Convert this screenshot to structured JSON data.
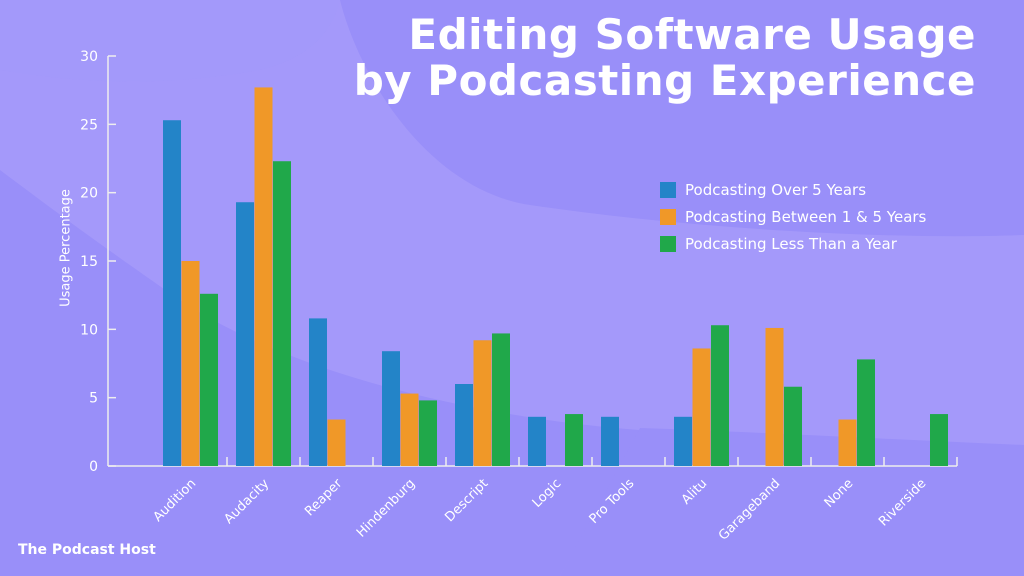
{
  "colors": {
    "background": "#998ff9",
    "background_light": "#a59afa",
    "series": [
      "#2384c8",
      "#f09828",
      "#20a84a"
    ]
  },
  "chart_data": {
    "type": "bar",
    "title": "Editing Software Usage by Podcasting Experience",
    "title_lines": [
      "Editing Software Usage",
      "by Podcasting Experience"
    ],
    "xlabel": "",
    "ylabel": "Usage Percentage",
    "ylim": [
      0,
      30
    ],
    "yticks": [
      0,
      5,
      10,
      15,
      20,
      25,
      30
    ],
    "grid": false,
    "legend_position": "right",
    "categories": [
      "Audition",
      "Audacity",
      "Reaper",
      "Hindenburg",
      "Descript",
      "Logic",
      "Pro Tools",
      "Alitu",
      "Garageband",
      "None",
      "Riverside"
    ],
    "series": [
      {
        "name": "Podcasting Over 5 Years",
        "values": [
          25.3,
          19.3,
          10.8,
          8.4,
          6.0,
          3.6,
          3.6,
          3.6,
          0,
          0,
          0
        ]
      },
      {
        "name": "Podcasting Between 1 & 5 Years",
        "values": [
          15.0,
          27.7,
          3.4,
          5.3,
          9.2,
          0,
          0,
          8.6,
          10.1,
          3.4,
          0
        ]
      },
      {
        "name": "Podcasting Less Than a Year",
        "values": [
          12.6,
          22.3,
          0,
          4.8,
          9.7,
          3.8,
          0,
          10.3,
          5.8,
          7.8,
          3.8
        ]
      }
    ]
  },
  "branding": {
    "logo_text": "The Podcast Host"
  }
}
